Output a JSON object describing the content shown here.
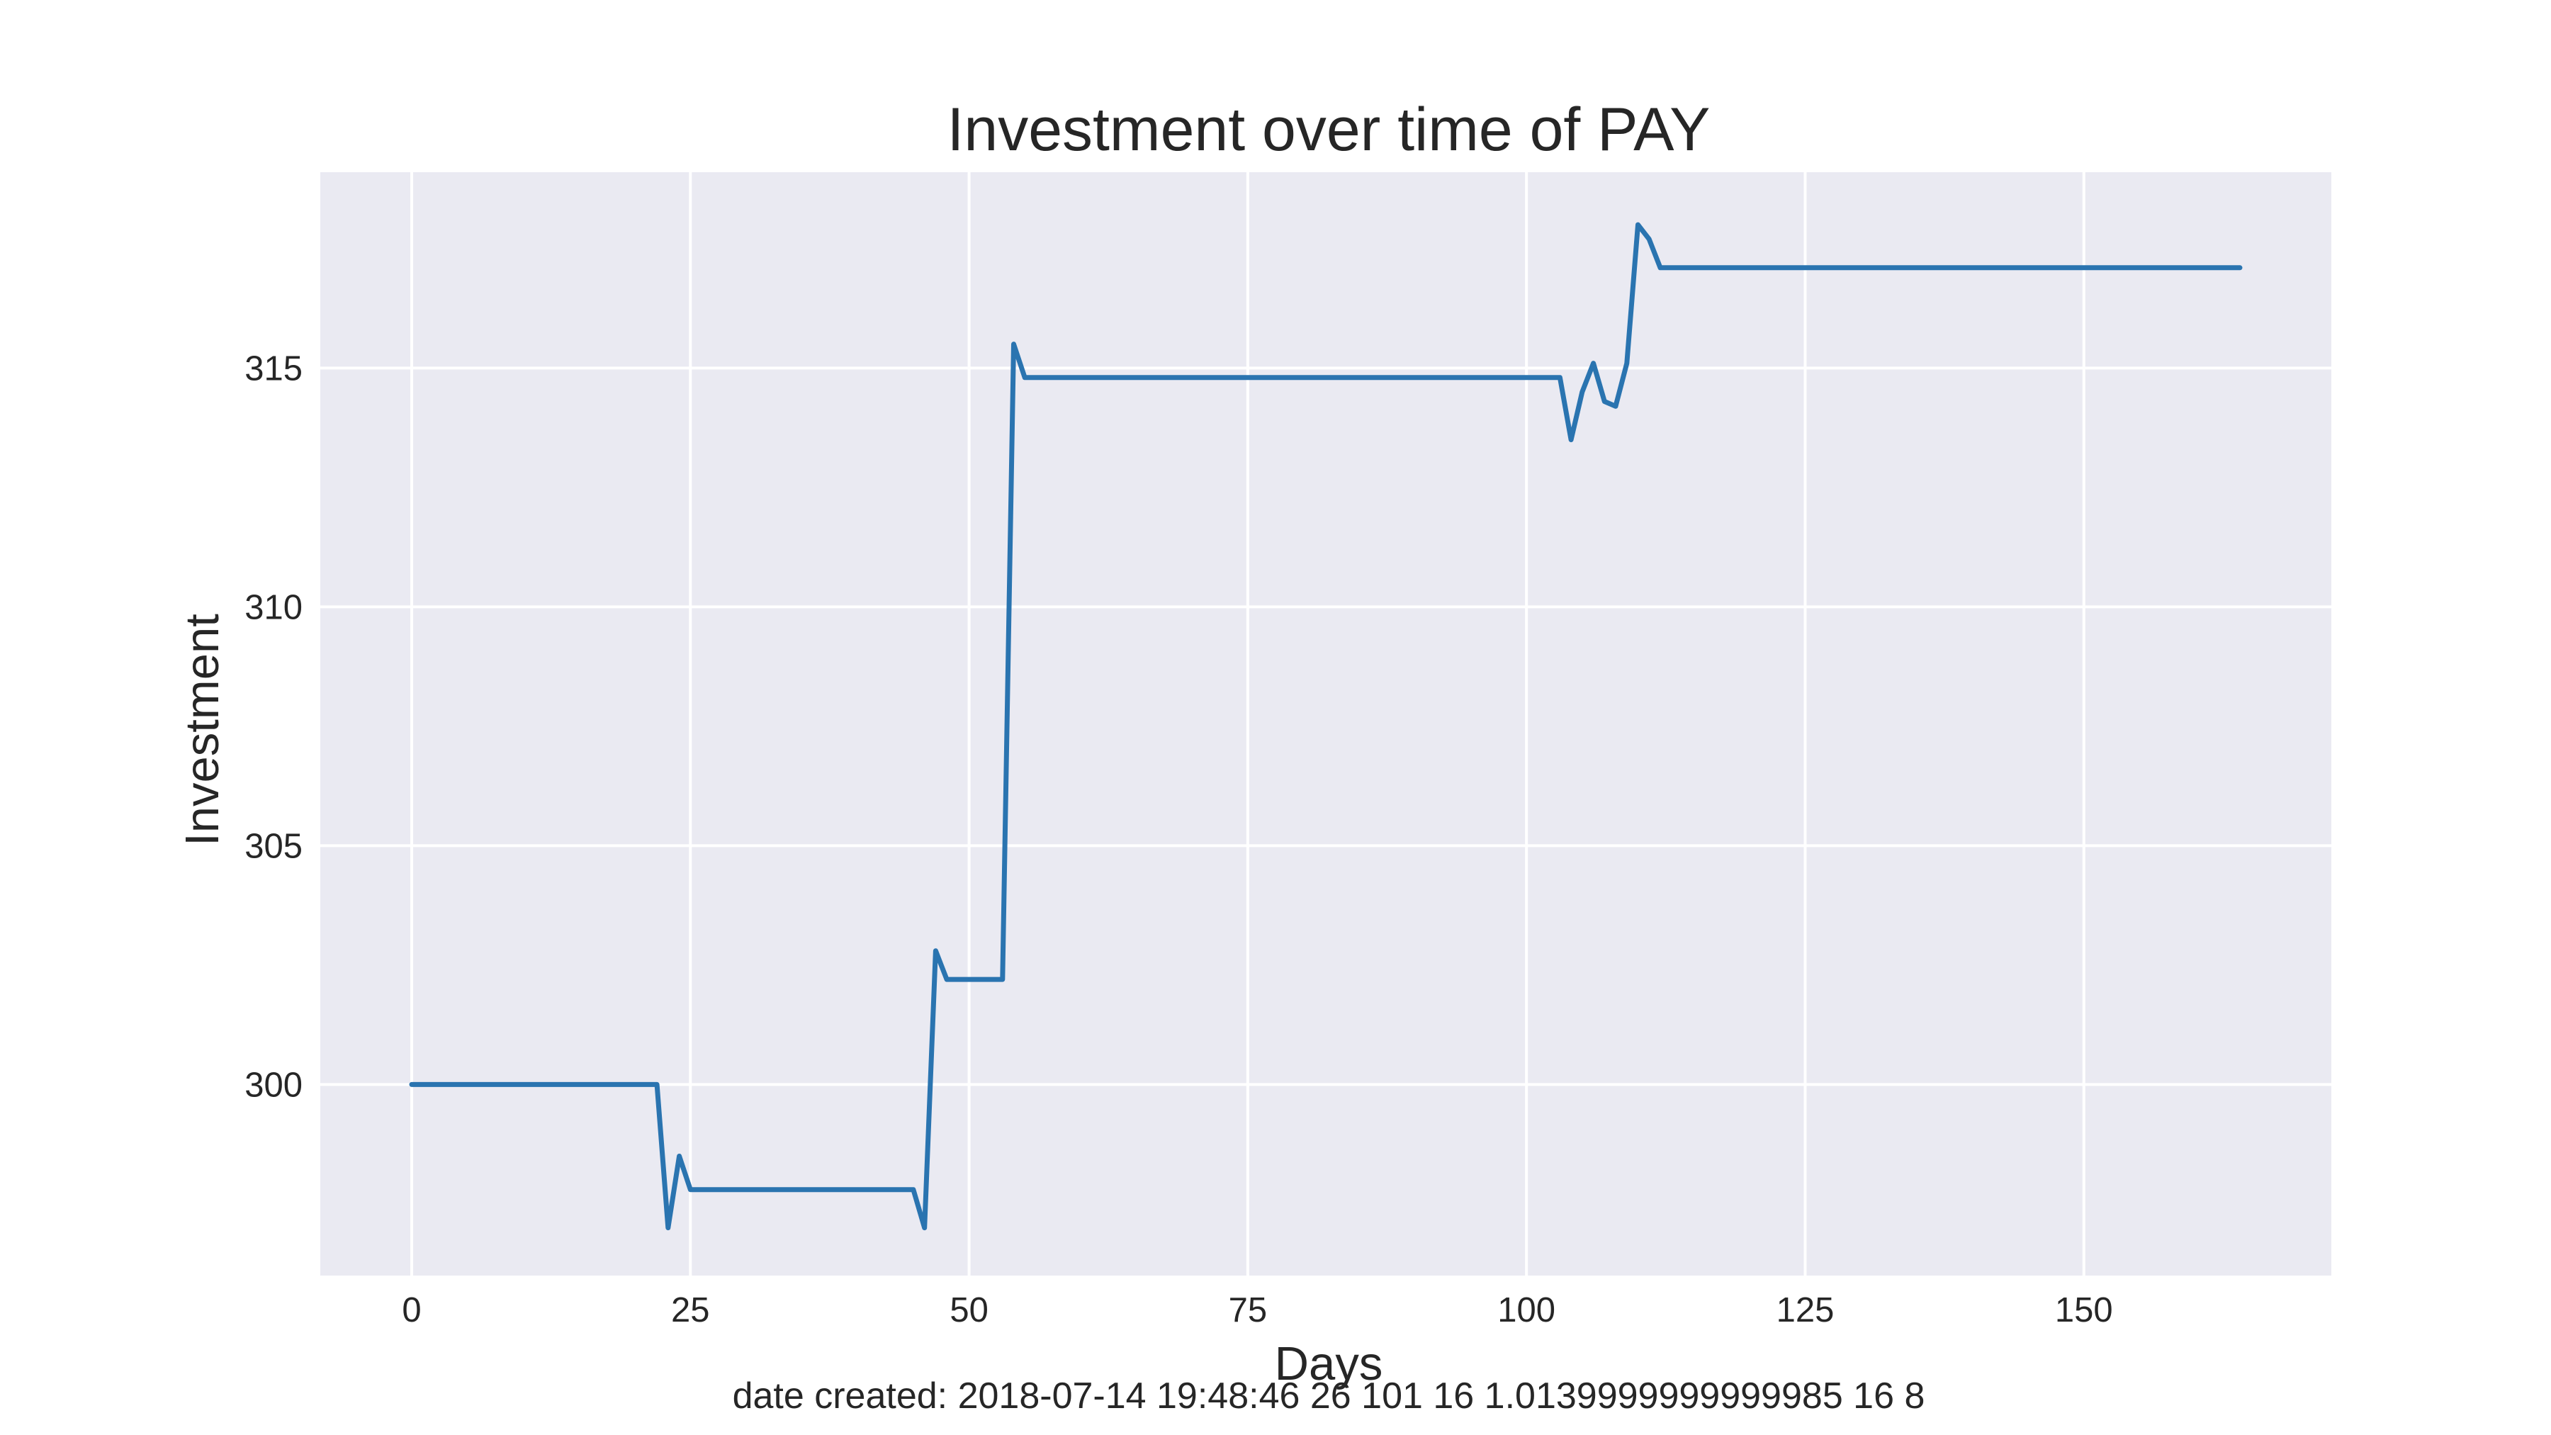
{
  "chart_data": {
    "type": "line",
    "title": "Investment over time of PAY",
    "xlabel": "Days",
    "ylabel": "Investment",
    "xlim": [
      -8.2,
      172.2
    ],
    "ylim": [
      296.0,
      319.1
    ],
    "xticks": [
      0,
      25,
      50,
      75,
      100,
      125,
      150
    ],
    "yticks": [
      300,
      305,
      310,
      315
    ],
    "grid": true,
    "legend": "none",
    "line_color": "#2a74b0",
    "plot_bg": "#eaeaf2",
    "footnote": "date created: 2018-07-14 19:48:46 26 101 16 1.0139999999999985 16 8",
    "series": [
      {
        "x": [
          0,
          22,
          23,
          24,
          25,
          45,
          46,
          47,
          48,
          53,
          54,
          55,
          103,
          104,
          105,
          106,
          107,
          108,
          109,
          110,
          111,
          112,
          164
        ],
        "y": [
          300.0,
          300.0,
          297.0,
          298.5,
          297.8,
          297.8,
          297.0,
          302.8,
          302.2,
          302.2,
          315.5,
          314.8,
          314.8,
          313.5,
          314.5,
          315.1,
          314.3,
          314.2,
          315.1,
          318.0,
          317.7,
          317.1,
          317.1
        ]
      }
    ]
  }
}
